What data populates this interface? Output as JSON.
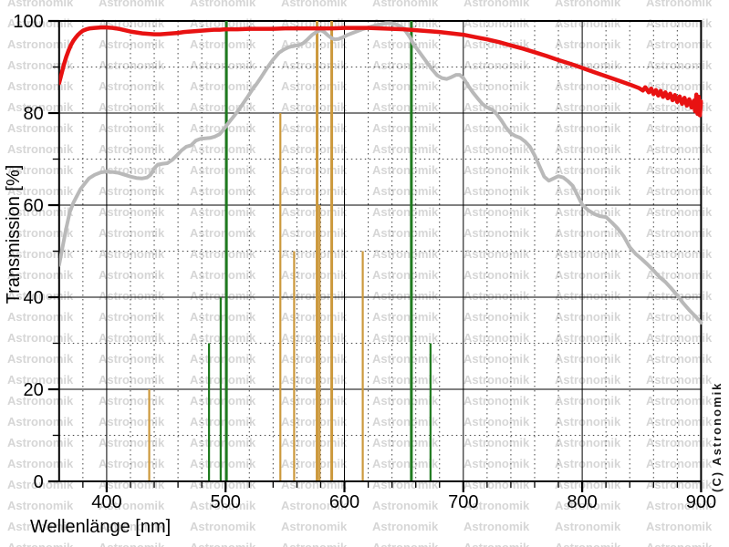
{
  "figure": {
    "xlabel": "Wellenlänge [nm]",
    "ylabel": "Transmission [%]",
    "copyright": "(C) Astronomik",
    "watermark_text": "Astronomik"
  },
  "chart_data": {
    "type": "line",
    "title": "",
    "xlabel": "Wellenlänge [nm]",
    "ylabel": "Transmission [%]",
    "x_range": [
      360,
      900
    ],
    "y_range": [
      0,
      100
    ],
    "x_ticks": [
      400,
      500,
      600,
      700,
      800,
      900
    ],
    "y_ticks": [
      0,
      20,
      40,
      60,
      80,
      100
    ],
    "x_minor_step": 20,
    "y_minor_step": 10,
    "grid": "solid lines at major ticks, dotted lines at minor ticks",
    "legend_position": "none",
    "colors": {
      "red_curve": "#e81212",
      "gray_curve": "#b9b9b9",
      "green_lines": "#1f7a1f",
      "orange_lines": "#cc993d",
      "watermark": "#d6d6d6",
      "axis": "#000000"
    },
    "series": [
      {
        "name": "red-curve-filter-transmission",
        "color": "#e81212",
        "stroke_px": 4.5,
        "points": [
          [
            360,
            86.5
          ],
          [
            362,
            88.5
          ],
          [
            364,
            90.5
          ],
          [
            366,
            92.2
          ],
          [
            368,
            93.6
          ],
          [
            370,
            94.8
          ],
          [
            372,
            95.7
          ],
          [
            374,
            96.4
          ],
          [
            376,
            97.0
          ],
          [
            378,
            97.5
          ],
          [
            380,
            97.9
          ],
          [
            383,
            98.2
          ],
          [
            386,
            98.4
          ],
          [
            390,
            98.5
          ],
          [
            395,
            98.6
          ],
          [
            400,
            98.6
          ],
          [
            405,
            98.5
          ],
          [
            410,
            98.3
          ],
          [
            415,
            98.0
          ],
          [
            420,
            97.7
          ],
          [
            425,
            97.5
          ],
          [
            430,
            97.3
          ],
          [
            435,
            97.2
          ],
          [
            440,
            97.1
          ],
          [
            445,
            97.1
          ],
          [
            450,
            97.2
          ],
          [
            455,
            97.3
          ],
          [
            460,
            97.4
          ],
          [
            465,
            97.6
          ],
          [
            470,
            97.7
          ],
          [
            475,
            97.8
          ],
          [
            480,
            97.9
          ],
          [
            485,
            98.0
          ],
          [
            490,
            98.1
          ],
          [
            495,
            98.1
          ],
          [
            500,
            98.2
          ],
          [
            510,
            98.2
          ],
          [
            520,
            98.3
          ],
          [
            530,
            98.3
          ],
          [
            540,
            98.3
          ],
          [
            550,
            98.4
          ],
          [
            560,
            98.4
          ],
          [
            570,
            98.4
          ],
          [
            580,
            98.4
          ],
          [
            590,
            98.4
          ],
          [
            600,
            98.5
          ],
          [
            610,
            98.5
          ],
          [
            620,
            98.5
          ],
          [
            630,
            98.4
          ],
          [
            640,
            98.3
          ],
          [
            650,
            98.2
          ],
          [
            660,
            98.0
          ],
          [
            670,
            97.8
          ],
          [
            680,
            97.6
          ],
          [
            690,
            97.3
          ],
          [
            700,
            97.0
          ],
          [
            710,
            96.5
          ],
          [
            720,
            96.0
          ],
          [
            730,
            95.4
          ],
          [
            740,
            94.7
          ],
          [
            750,
            94.0
          ],
          [
            760,
            93.2
          ],
          [
            770,
            92.4
          ],
          [
            780,
            91.5
          ],
          [
            790,
            90.7
          ],
          [
            800,
            89.8
          ],
          [
            810,
            88.9
          ],
          [
            820,
            88.0
          ],
          [
            830,
            87.1
          ],
          [
            840,
            86.2
          ],
          [
            848,
            85.4
          ],
          [
            851,
            84.9
          ],
          [
            853,
            85.6
          ],
          [
            856,
            84.5
          ],
          [
            858,
            85.3
          ],
          [
            860,
            84.1
          ],
          [
            862,
            85.0
          ],
          [
            864,
            83.8
          ],
          [
            866,
            84.8
          ],
          [
            868,
            83.5
          ],
          [
            870,
            84.5
          ],
          [
            872,
            83.2
          ],
          [
            874,
            84.2
          ],
          [
            876,
            82.8
          ],
          [
            878,
            83.9
          ],
          [
            880,
            82.4
          ],
          [
            882,
            83.6
          ],
          [
            884,
            82.0
          ],
          [
            886,
            83.3
          ],
          [
            888,
            81.6
          ],
          [
            890,
            83.0
          ],
          [
            892,
            81.2
          ],
          [
            894,
            82.7
          ],
          [
            895,
            80.4
          ],
          [
            896,
            84.0
          ],
          [
            897,
            79.8
          ],
          [
            898,
            83.5
          ],
          [
            899,
            79.5
          ],
          [
            900,
            82.5
          ]
        ]
      },
      {
        "name": "gray-curve-reference-sensitivity",
        "color": "#b9b9b9",
        "stroke_px": 4,
        "points": [
          [
            360,
            47.0
          ],
          [
            363,
            51.0
          ],
          [
            366,
            55.0
          ],
          [
            369,
            58.5
          ],
          [
            372,
            60.5
          ],
          [
            375,
            62.0
          ],
          [
            378,
            63.5
          ],
          [
            381,
            64.5
          ],
          [
            385,
            65.8
          ],
          [
            390,
            66.6
          ],
          [
            395,
            67.1
          ],
          [
            400,
            67.3
          ],
          [
            405,
            67.2
          ],
          [
            410,
            67.0
          ],
          [
            415,
            66.6
          ],
          [
            420,
            66.2
          ],
          [
            425,
            65.9
          ],
          [
            430,
            65.8
          ],
          [
            434,
            66.0
          ],
          [
            437,
            66.6
          ],
          [
            440,
            68.0
          ],
          [
            443,
            68.8
          ],
          [
            447,
            69.0
          ],
          [
            451,
            69.1
          ],
          [
            455,
            69.8
          ],
          [
            459,
            70.8
          ],
          [
            463,
            71.9
          ],
          [
            467,
            72.7
          ],
          [
            471,
            73.0
          ],
          [
            475,
            74.0
          ],
          [
            479,
            74.4
          ],
          [
            483,
            74.5
          ],
          [
            487,
            74.6
          ],
          [
            491,
            74.9
          ],
          [
            495,
            75.4
          ],
          [
            498,
            76.3
          ],
          [
            502,
            77.7
          ],
          [
            506,
            79.0
          ],
          [
            510,
            80.3
          ],
          [
            514,
            81.8
          ],
          [
            518,
            83.3
          ],
          [
            522,
            84.9
          ],
          [
            526,
            86.3
          ],
          [
            530,
            87.8
          ],
          [
            535,
            89.8
          ],
          [
            540,
            91.6
          ],
          [
            545,
            93.1
          ],
          [
            549,
            93.8
          ],
          [
            553,
            94.3
          ],
          [
            557,
            94.6
          ],
          [
            561,
            94.7
          ],
          [
            565,
            95.1
          ],
          [
            569,
            96.0
          ],
          [
            573,
            97.0
          ],
          [
            577,
            97.7
          ],
          [
            580,
            98.0
          ],
          [
            583,
            97.6
          ],
          [
            586,
            96.9
          ],
          [
            589,
            96.3
          ],
          [
            592,
            96.0
          ],
          [
            595,
            96.1
          ],
          [
            599,
            96.5
          ],
          [
            603,
            97.0
          ],
          [
            607,
            97.4
          ],
          [
            611,
            97.8
          ],
          [
            615,
            98.2
          ],
          [
            619,
            98.5
          ],
          [
            623,
            98.8
          ],
          [
            627,
            99.1
          ],
          [
            631,
            99.3
          ],
          [
            635,
            99.5
          ],
          [
            639,
            99.5
          ],
          [
            643,
            99.3
          ],
          [
            646,
            99.0
          ],
          [
            649,
            98.5
          ],
          [
            652,
            97.6
          ],
          [
            655,
            96.5
          ],
          [
            658,
            95.0
          ],
          [
            662,
            93.6
          ],
          [
            666,
            92.2
          ],
          [
            670,
            90.8
          ],
          [
            674,
            89.4
          ],
          [
            678,
            88.2
          ],
          [
            682,
            87.6
          ],
          [
            686,
            87.4
          ],
          [
            690,
            87.8
          ],
          [
            694,
            88.3
          ],
          [
            697,
            88.3
          ],
          [
            700,
            87.6
          ],
          [
            704,
            86.0
          ],
          [
            708,
            84.5
          ],
          [
            712,
            83.2
          ],
          [
            716,
            82.0
          ],
          [
            720,
            81.2
          ],
          [
            724,
            80.8
          ],
          [
            728,
            79.8
          ],
          [
            732,
            78.4
          ],
          [
            736,
            76.8
          ],
          [
            740,
            75.6
          ],
          [
            744,
            75.0
          ],
          [
            748,
            74.6
          ],
          [
            752,
            73.8
          ],
          [
            756,
            72.7
          ],
          [
            760,
            70.8
          ],
          [
            764,
            68.5
          ],
          [
            768,
            66.2
          ],
          [
            772,
            65.3
          ],
          [
            776,
            65.8
          ],
          [
            780,
            66.3
          ],
          [
            784,
            66.0
          ],
          [
            788,
            65.2
          ],
          [
            792,
            64.2
          ],
          [
            796,
            62.2
          ],
          [
            800,
            60.1
          ],
          [
            805,
            58.9
          ],
          [
            810,
            58.1
          ],
          [
            815,
            57.6
          ],
          [
            820,
            57.4
          ],
          [
            825,
            56.2
          ],
          [
            830,
            54.9
          ],
          [
            835,
            53.2
          ],
          [
            840,
            50.9
          ],
          [
            845,
            49.4
          ],
          [
            850,
            48.3
          ],
          [
            855,
            47.1
          ],
          [
            860,
            45.8
          ],
          [
            865,
            44.4
          ],
          [
            870,
            43.3
          ],
          [
            875,
            41.9
          ],
          [
            880,
            40.4
          ],
          [
            885,
            38.7
          ],
          [
            890,
            37.2
          ],
          [
            895,
            35.9
          ],
          [
            900,
            34.5
          ]
        ]
      }
    ],
    "emission_lines": [
      {
        "nm": 435.8,
        "height_pct": 20,
        "color": "#cc993d",
        "group": "orange"
      },
      {
        "nm": 546.1,
        "height_pct": 80,
        "color": "#cc993d",
        "group": "orange"
      },
      {
        "nm": 557.7,
        "height_pct": 50,
        "color": "#cc993d",
        "group": "orange"
      },
      {
        "nm": 577.0,
        "height_pct": 100,
        "color": "#cc993d",
        "group": "orange"
      },
      {
        "nm": 579.1,
        "height_pct": 60,
        "color": "#cc993d",
        "group": "orange"
      },
      {
        "nm": 589.3,
        "height_pct": 100,
        "color": "#cc993d",
        "group": "orange"
      },
      {
        "nm": 615.4,
        "height_pct": 50,
        "color": "#cc993d",
        "group": "orange"
      },
      {
        "nm": 486.1,
        "height_pct": 30,
        "color": "#1f7a1f",
        "group": "green"
      },
      {
        "nm": 495.9,
        "height_pct": 40,
        "color": "#1f7a1f",
        "group": "green"
      },
      {
        "nm": 500.7,
        "height_pct": 100,
        "color": "#1f7a1f",
        "group": "green"
      },
      {
        "nm": 656.3,
        "height_pct": 100,
        "color": "#1f7a1f",
        "group": "green"
      },
      {
        "nm": 672.4,
        "height_pct": 30,
        "color": "#1f7a1f",
        "group": "green"
      }
    ]
  }
}
